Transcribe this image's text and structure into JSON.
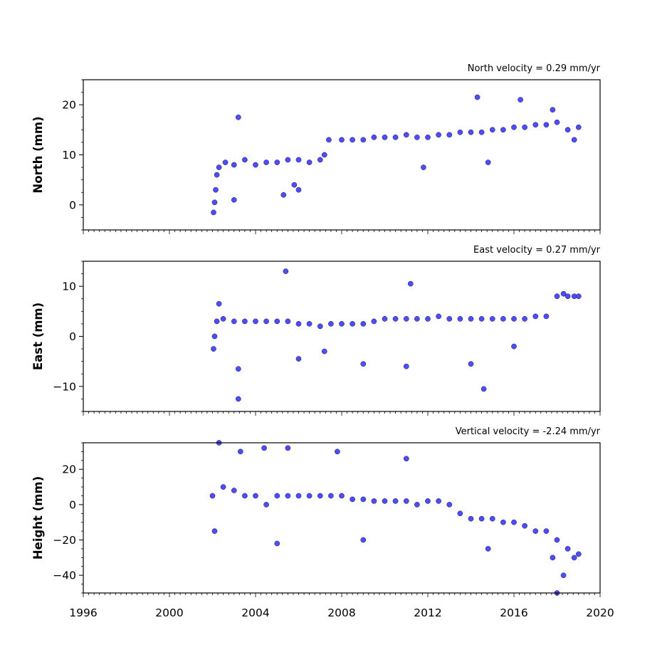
{
  "chart_data": [
    {
      "type": "scatter",
      "title": "North velocity = 0.29 mm/yr",
      "xlabel": "",
      "ylabel": "North (mm)",
      "xlim": [
        1996,
        2020
      ],
      "ylim": [
        -5,
        25
      ],
      "yticks": [
        0,
        10,
        20
      ],
      "color": "#4d4dff",
      "edge_color": "#1a1a33",
      "series": [
        {
          "points": [
            [
              2002.05,
              -1.5
            ],
            [
              2002.1,
              0.5
            ],
            [
              2002.15,
              3.0
            ],
            [
              2002.2,
              6.0
            ],
            [
              2002.3,
              7.5
            ],
            [
              2002.6,
              8.5
            ],
            [
              2003.0,
              8.0
            ],
            [
              2003.2,
              17.5
            ],
            [
              2003.0,
              1.0
            ],
            [
              2003.5,
              9.0
            ],
            [
              2004.0,
              8.0
            ],
            [
              2004.5,
              8.5
            ],
            [
              2005.0,
              8.5
            ],
            [
              2005.3,
              2.0
            ],
            [
              2005.5,
              9.0
            ],
            [
              2005.8,
              4.0
            ],
            [
              2006.0,
              3.0
            ],
            [
              2006.0,
              9.0
            ],
            [
              2006.5,
              8.5
            ],
            [
              2007.0,
              9.0
            ],
            [
              2007.2,
              10.0
            ],
            [
              2007.4,
              13.0
            ],
            [
              2008.0,
              13.0
            ],
            [
              2008.5,
              13.0
            ],
            [
              2009.0,
              13.0
            ],
            [
              2009.5,
              13.5
            ],
            [
              2010.0,
              13.5
            ],
            [
              2010.5,
              13.5
            ],
            [
              2011.0,
              14.0
            ],
            [
              2011.5,
              13.5
            ],
            [
              2011.8,
              7.5
            ],
            [
              2012.0,
              13.5
            ],
            [
              2012.5,
              14.0
            ],
            [
              2013.0,
              14.0
            ],
            [
              2013.5,
              14.5
            ],
            [
              2014.0,
              14.5
            ],
            [
              2014.3,
              21.5
            ],
            [
              2014.5,
              14.5
            ],
            [
              2014.8,
              8.5
            ],
            [
              2015.0,
              15.0
            ],
            [
              2015.5,
              15.0
            ],
            [
              2016.0,
              15.5
            ],
            [
              2016.3,
              21.0
            ],
            [
              2016.5,
              15.5
            ],
            [
              2017.0,
              16.0
            ],
            [
              2017.5,
              16.0
            ],
            [
              2017.8,
              19.0
            ],
            [
              2018.0,
              16.5
            ],
            [
              2018.5,
              15.0
            ],
            [
              2018.8,
              13.0
            ],
            [
              2019.0,
              15.5
            ]
          ]
        }
      ]
    },
    {
      "type": "scatter",
      "title": "East velocity = 0.27 mm/yr",
      "xlabel": "",
      "ylabel": "East (mm)",
      "xlim": [
        1996,
        2020
      ],
      "ylim": [
        -15,
        15
      ],
      "yticks": [
        -10,
        0,
        10
      ],
      "color": "#4d4dff",
      "edge_color": "#1a1a33",
      "series": [
        {
          "points": [
            [
              2002.05,
              -2.5
            ],
            [
              2002.1,
              0.0
            ],
            [
              2002.2,
              3.0
            ],
            [
              2002.3,
              6.5
            ],
            [
              2002.5,
              3.5
            ],
            [
              2003.0,
              3.0
            ],
            [
              2003.2,
              -12.5
            ],
            [
              2003.2,
              -6.5
            ],
            [
              2003.5,
              3.0
            ],
            [
              2004.0,
              3.0
            ],
            [
              2004.5,
              3.0
            ],
            [
              2005.0,
              3.0
            ],
            [
              2005.4,
              13.0
            ],
            [
              2005.5,
              3.0
            ],
            [
              2006.0,
              2.5
            ],
            [
              2006.0,
              -4.5
            ],
            [
              2006.5,
              2.5
            ],
            [
              2007.0,
              2.0
            ],
            [
              2007.2,
              -3.0
            ],
            [
              2007.5,
              2.5
            ],
            [
              2008.0,
              2.5
            ],
            [
              2008.5,
              2.5
            ],
            [
              2009.0,
              2.5
            ],
            [
              2009.0,
              -5.5
            ],
            [
              2009.5,
              3.0
            ],
            [
              2010.0,
              3.5
            ],
            [
              2010.5,
              3.5
            ],
            [
              2011.0,
              3.5
            ],
            [
              2011.0,
              -6.0
            ],
            [
              2011.2,
              10.5
            ],
            [
              2011.5,
              3.5
            ],
            [
              2012.0,
              3.5
            ],
            [
              2012.5,
              4.0
            ],
            [
              2013.0,
              3.5
            ],
            [
              2013.5,
              3.5
            ],
            [
              2014.0,
              3.5
            ],
            [
              2014.0,
              -5.5
            ],
            [
              2014.5,
              3.5
            ],
            [
              2014.6,
              -10.5
            ],
            [
              2015.0,
              3.5
            ],
            [
              2015.5,
              3.5
            ],
            [
              2016.0,
              3.5
            ],
            [
              2016.0,
              -2.0
            ],
            [
              2016.5,
              3.5
            ],
            [
              2017.0,
              4.0
            ],
            [
              2017.5,
              4.0
            ],
            [
              2018.0,
              8.0
            ],
            [
              2018.3,
              8.5
            ],
            [
              2018.5,
              8.0
            ],
            [
              2018.8,
              8.0
            ],
            [
              2019.0,
              8.0
            ]
          ]
        }
      ]
    },
    {
      "type": "scatter",
      "title": "Vertical velocity = -2.24 mm/yr",
      "xlabel": "",
      "ylabel": "Height (mm)",
      "xlim": [
        1996,
        2020
      ],
      "ylim": [
        -50,
        35
      ],
      "yticks": [
        -40,
        -20,
        0,
        20
      ],
      "xticks": [
        1996,
        2000,
        2004,
        2008,
        2012,
        2016,
        2020
      ],
      "xtick_labels": [
        "1996",
        "2000",
        "2004",
        "2008",
        "2012",
        "2016",
        "2020"
      ],
      "color": "#4d4dff",
      "edge_color": "#1a1a33",
      "series": [
        {
          "points": [
            [
              2002.0,
              5.0
            ],
            [
              2002.1,
              -15.0
            ],
            [
              2002.3,
              35.0
            ],
            [
              2002.5,
              10.0
            ],
            [
              2003.0,
              8.0
            ],
            [
              2003.3,
              30.0
            ],
            [
              2003.5,
              5.0
            ],
            [
              2004.0,
              5.0
            ],
            [
              2004.4,
              32.0
            ],
            [
              2004.5,
              0.0
            ],
            [
              2005.0,
              -22.0
            ],
            [
              2005.0,
              5.0
            ],
            [
              2005.5,
              5.0
            ],
            [
              2005.5,
              32.0
            ],
            [
              2006.0,
              5.0
            ],
            [
              2006.5,
              5.0
            ],
            [
              2007.0,
              5.0
            ],
            [
              2007.5,
              5.0
            ],
            [
              2007.8,
              30.0
            ],
            [
              2008.0,
              5.0
            ],
            [
              2008.5,
              3.0
            ],
            [
              2009.0,
              3.0
            ],
            [
              2009.0,
              -20.0
            ],
            [
              2009.5,
              2.0
            ],
            [
              2010.0,
              2.0
            ],
            [
              2010.5,
              2.0
            ],
            [
              2011.0,
              2.0
            ],
            [
              2011.0,
              26.0
            ],
            [
              2011.5,
              0.0
            ],
            [
              2012.0,
              2.0
            ],
            [
              2012.5,
              2.0
            ],
            [
              2013.0,
              0.0
            ],
            [
              2013.5,
              -5.0
            ],
            [
              2014.0,
              -8.0
            ],
            [
              2014.5,
              -8.0
            ],
            [
              2014.8,
              -25.0
            ],
            [
              2015.0,
              -8.0
            ],
            [
              2015.5,
              -10.0
            ],
            [
              2016.0,
              -10.0
            ],
            [
              2016.5,
              -12.0
            ],
            [
              2017.0,
              -15.0
            ],
            [
              2017.5,
              -15.0
            ],
            [
              2017.8,
              -30.0
            ],
            [
              2018.0,
              -20.0
            ],
            [
              2018.0,
              -50.0
            ],
            [
              2018.3,
              -40.0
            ],
            [
              2018.5,
              -25.0
            ],
            [
              2018.8,
              -30.0
            ],
            [
              2019.0,
              -28.0
            ]
          ]
        }
      ]
    }
  ]
}
